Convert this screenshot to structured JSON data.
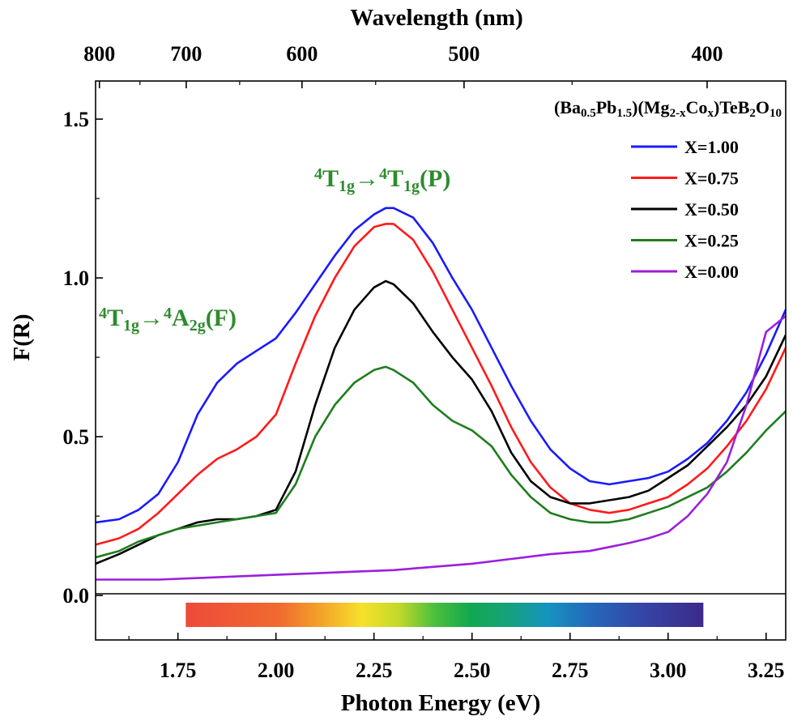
{
  "chart_data": {
    "type": "line",
    "title": "",
    "xlabel": "Photon Energy (eV)",
    "ylabel": "F(R)",
    "top_axis_label": "Wavelength (nm)",
    "xlim": [
      1.54,
      3.3
    ],
    "ylim": [
      -0.14,
      1.62
    ],
    "x_ticks": [
      "1.75",
      "2.00",
      "2.25",
      "2.50",
      "2.75",
      "3.00",
      "3.25"
    ],
    "y_ticks": [
      "0.0",
      "0.5",
      "1.0",
      "1.5"
    ],
    "top_ticks": [
      {
        "label": "800",
        "nm": 800
      },
      {
        "label": "700",
        "nm": 700
      },
      {
        "label": "600",
        "nm": 600
      },
      {
        "label": "500",
        "nm": 500
      },
      {
        "label": "400",
        "nm": 400
      }
    ],
    "formula": {
      "parts": [
        {
          "t": "(Ba"
        },
        {
          "t": "0.5",
          "sub": true
        },
        {
          "t": "Pb"
        },
        {
          "t": "1.5",
          "sub": true
        },
        {
          "t": ")(Mg"
        },
        {
          "t": "2-x",
          "sub": true
        },
        {
          "t": "Co"
        },
        {
          "t": "x",
          "sub": true
        },
        {
          "t": ")TeB"
        },
        {
          "t": "2",
          "sub": true
        },
        {
          "t": "O"
        },
        {
          "t": "10",
          "sub": true
        }
      ]
    },
    "annotations": [
      {
        "id": "transition-t1g-t1g-p",
        "color": "#2e8b2e",
        "parts": [
          {
            "t": "4",
            "sup": true
          },
          {
            "t": "T"
          },
          {
            "t": "1g",
            "sub": true
          },
          {
            "t": "→"
          },
          {
            "t": "4",
            "sup": true
          },
          {
            "t": "T"
          },
          {
            "t": "1g",
            "sub": true
          },
          {
            "t": "(P)"
          }
        ]
      },
      {
        "id": "transition-t1g-a2g-f",
        "color": "#2e8b2e",
        "parts": [
          {
            "t": "4",
            "sup": true
          },
          {
            "t": "T"
          },
          {
            "t": "1g",
            "sub": true
          },
          {
            "t": "→"
          },
          {
            "t": "4",
            "sup": true
          },
          {
            "t": "A"
          },
          {
            "t": "2g",
            "sub": true
          },
          {
            "t": "(F)"
          }
        ]
      }
    ],
    "spectrum_bar": {
      "x_start": 1.77,
      "x_end": 3.09
    },
    "legend_position": "top-right",
    "grid": false,
    "series": [
      {
        "name": "X=1.00",
        "color": "#1a1aff",
        "x": [
          1.54,
          1.6,
          1.65,
          1.7,
          1.75,
          1.8,
          1.85,
          1.9,
          1.95,
          2.0,
          2.05,
          2.1,
          2.15,
          2.2,
          2.25,
          2.28,
          2.3,
          2.35,
          2.4,
          2.45,
          2.5,
          2.55,
          2.6,
          2.65,
          2.7,
          2.75,
          2.8,
          2.85,
          2.9,
          2.95,
          3.0,
          3.05,
          3.1,
          3.15,
          3.2,
          3.25,
          3.3
        ],
        "y": [
          0.23,
          0.24,
          0.27,
          0.32,
          0.42,
          0.57,
          0.67,
          0.73,
          0.77,
          0.81,
          0.89,
          0.98,
          1.07,
          1.15,
          1.2,
          1.22,
          1.22,
          1.19,
          1.11,
          1.0,
          0.9,
          0.78,
          0.66,
          0.55,
          0.46,
          0.4,
          0.36,
          0.35,
          0.36,
          0.37,
          0.39,
          0.43,
          0.48,
          0.55,
          0.64,
          0.76,
          0.9
        ]
      },
      {
        "name": "X=0.75",
        "color": "#ff1a1a",
        "x": [
          1.54,
          1.6,
          1.65,
          1.7,
          1.75,
          1.8,
          1.85,
          1.9,
          1.95,
          2.0,
          2.05,
          2.1,
          2.15,
          2.2,
          2.25,
          2.28,
          2.3,
          2.35,
          2.4,
          2.45,
          2.5,
          2.55,
          2.6,
          2.65,
          2.7,
          2.75,
          2.8,
          2.85,
          2.9,
          2.95,
          3.0,
          3.05,
          3.1,
          3.15,
          3.2,
          3.25,
          3.3
        ],
        "y": [
          0.16,
          0.18,
          0.21,
          0.26,
          0.32,
          0.38,
          0.43,
          0.46,
          0.5,
          0.57,
          0.73,
          0.88,
          1.0,
          1.1,
          1.16,
          1.17,
          1.17,
          1.12,
          1.02,
          0.9,
          0.78,
          0.66,
          0.53,
          0.42,
          0.34,
          0.29,
          0.27,
          0.26,
          0.27,
          0.29,
          0.31,
          0.35,
          0.4,
          0.47,
          0.55,
          0.65,
          0.78
        ]
      },
      {
        "name": "X=0.50",
        "color": "#000000",
        "x": [
          1.54,
          1.6,
          1.65,
          1.7,
          1.75,
          1.8,
          1.85,
          1.9,
          1.95,
          2.0,
          2.05,
          2.1,
          2.15,
          2.2,
          2.25,
          2.28,
          2.3,
          2.35,
          2.4,
          2.45,
          2.5,
          2.55,
          2.6,
          2.65,
          2.7,
          2.75,
          2.8,
          2.85,
          2.9,
          2.95,
          3.0,
          3.05,
          3.1,
          3.15,
          3.2,
          3.25,
          3.3
        ],
        "y": [
          0.1,
          0.13,
          0.16,
          0.19,
          0.21,
          0.23,
          0.24,
          0.24,
          0.25,
          0.27,
          0.39,
          0.6,
          0.78,
          0.9,
          0.97,
          0.99,
          0.98,
          0.92,
          0.83,
          0.75,
          0.68,
          0.58,
          0.45,
          0.36,
          0.31,
          0.29,
          0.29,
          0.3,
          0.31,
          0.33,
          0.37,
          0.41,
          0.47,
          0.53,
          0.6,
          0.69,
          0.82
        ]
      },
      {
        "name": "X=0.25",
        "color": "#1e7d1e",
        "x": [
          1.54,
          1.6,
          1.65,
          1.7,
          1.75,
          1.8,
          1.85,
          1.9,
          1.95,
          2.0,
          2.05,
          2.1,
          2.15,
          2.2,
          2.25,
          2.28,
          2.3,
          2.35,
          2.4,
          2.45,
          2.5,
          2.55,
          2.6,
          2.65,
          2.7,
          2.75,
          2.8,
          2.85,
          2.9,
          2.95,
          3.0,
          3.05,
          3.1,
          3.15,
          3.2,
          3.25,
          3.3
        ],
        "y": [
          0.12,
          0.14,
          0.17,
          0.19,
          0.21,
          0.22,
          0.23,
          0.24,
          0.25,
          0.26,
          0.35,
          0.5,
          0.6,
          0.67,
          0.71,
          0.72,
          0.71,
          0.67,
          0.6,
          0.55,
          0.52,
          0.47,
          0.38,
          0.31,
          0.26,
          0.24,
          0.23,
          0.23,
          0.24,
          0.26,
          0.28,
          0.31,
          0.34,
          0.39,
          0.45,
          0.52,
          0.58
        ]
      },
      {
        "name": "X=0.00",
        "color": "#9b1fdb",
        "x": [
          1.54,
          1.7,
          1.8,
          1.9,
          2.0,
          2.1,
          2.2,
          2.3,
          2.4,
          2.5,
          2.6,
          2.7,
          2.8,
          2.9,
          2.95,
          3.0,
          3.05,
          3.1,
          3.15,
          3.2,
          3.25,
          3.3
        ],
        "y": [
          0.05,
          0.05,
          0.055,
          0.06,
          0.065,
          0.07,
          0.075,
          0.08,
          0.09,
          0.1,
          0.115,
          0.13,
          0.14,
          0.165,
          0.18,
          0.2,
          0.25,
          0.32,
          0.42,
          0.6,
          0.83,
          0.88
        ]
      }
    ]
  }
}
